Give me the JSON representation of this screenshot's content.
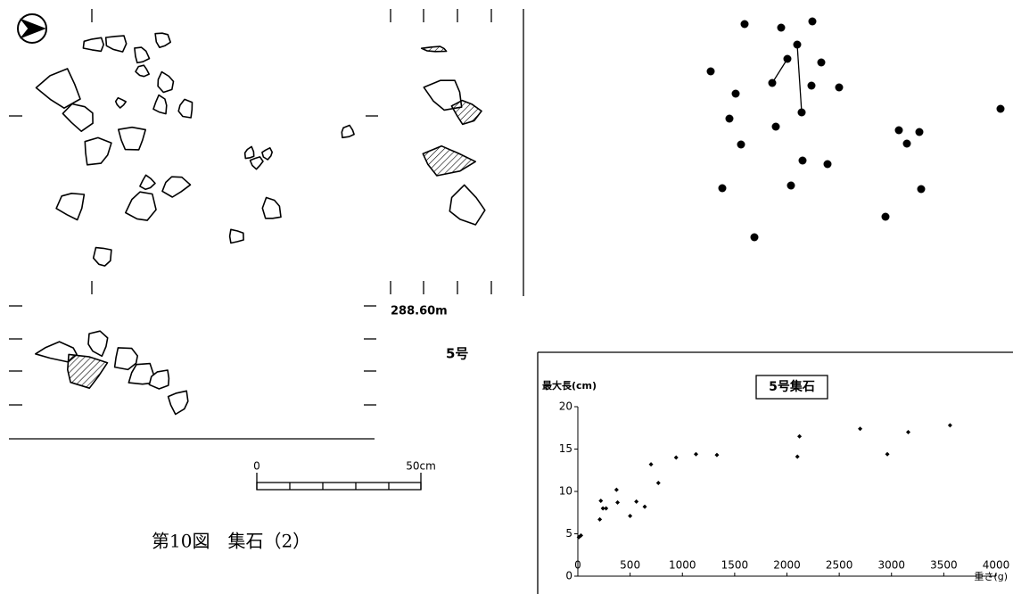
{
  "figure": {
    "caption": "第10図　集石（2）",
    "elevation": "288.60m",
    "feature": "5号",
    "scale_start": "0",
    "scale_end": "50cm"
  },
  "chart_data": {
    "type": "scatter",
    "title": "5号集石",
    "y_label": "最大長(cm)",
    "x_label": "重さ(g)",
    "xlim": [
      0,
      4000
    ],
    "ylim": [
      0,
      20
    ],
    "xticks": [
      0,
      500,
      1000,
      1500,
      2000,
      2500,
      3000,
      3500,
      4000
    ],
    "yticks": [
      0,
      5,
      10,
      15,
      20
    ],
    "x": [
      10,
      30,
      210,
      220,
      240,
      270,
      370,
      380,
      500,
      560,
      640,
      700,
      770,
      940,
      1130,
      1330,
      2100,
      2120,
      2700,
      2960,
      3160,
      3560
    ],
    "values": [
      4.6,
      4.8,
      6.7,
      8.9,
      8.0,
      8.0,
      10.2,
      8.7,
      7.1,
      8.8,
      8.2,
      13.2,
      11.0,
      14.0,
      14.4,
      14.3,
      14.1,
      16.5,
      17.4,
      14.4,
      17.0,
      17.8
    ],
    "color": "#000000"
  }
}
